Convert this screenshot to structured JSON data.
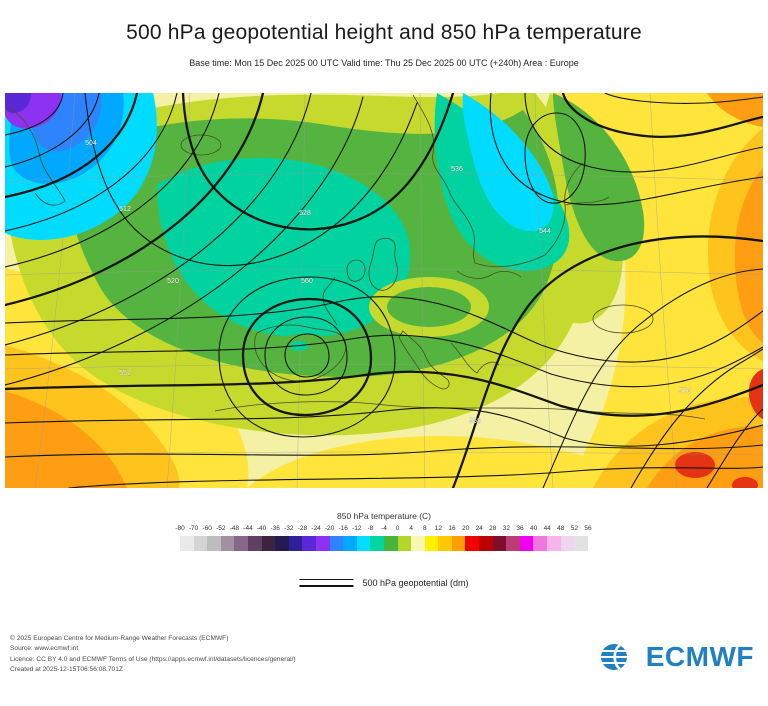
{
  "header": {
    "title": "500 hPa geopotential height and 850 hPa temperature",
    "subtitle": "Base time: Mon 15 Dec 2025 00 UTC Valid time: Thu 25 Dec 2025 00 UTC (+240h) Area : Europe"
  },
  "map": {
    "contour_labels": [
      "504",
      "512",
      "520",
      "528",
      "536",
      "544",
      "552",
      "560",
      "568",
      "576"
    ]
  },
  "legend": {
    "temp_title": "850 hPa temperature (C)",
    "temp_ticks": [
      "-80",
      "-70",
      "-60",
      "-52",
      "-48",
      "-44",
      "-40",
      "-36",
      "-32",
      "-28",
      "-24",
      "-20",
      "-16",
      "-12",
      "-8",
      "-4",
      "0",
      "4",
      "8",
      "12",
      "16",
      "20",
      "24",
      "28",
      "32",
      "36",
      "40",
      "44",
      "48",
      "52",
      "56"
    ],
    "temp_colors": [
      "#eaeaea",
      "#d4d4d4",
      "#bdbdbd",
      "#a391a3",
      "#87678a",
      "#5f3f62",
      "#3c233f",
      "#261a52",
      "#2f1f9b",
      "#5a28d7",
      "#8c32f0",
      "#2e84ff",
      "#00a9ff",
      "#00ddff",
      "#00d7a0",
      "#49b43c",
      "#b2d62a",
      "#f8f8b4",
      "#ffef00",
      "#ffc800",
      "#ff9e00",
      "#f00000",
      "#bc0000",
      "#7e0e2e",
      "#bc3c78",
      "#f000f0",
      "#f078dc",
      "#f6b4ea",
      "#eed7ee",
      "#e2e2e2"
    ],
    "geo_label": "500 hPa geopotential (dm)"
  },
  "footer": {
    "lines": [
      "© 2025 European Centre for Medium-Range Weather Forecasts (ECMWF)",
      "Source: www.ecmwf.int",
      "Licence: CC BY 4.0 and ECMWF Terms of Use (https://apps.ecmwf.int/datasets/licences/general/)",
      "Created at 2025-12-15T06:56:08.701Z"
    ],
    "logo_text": "ECMWF",
    "logo_color": "#1f80c4"
  }
}
